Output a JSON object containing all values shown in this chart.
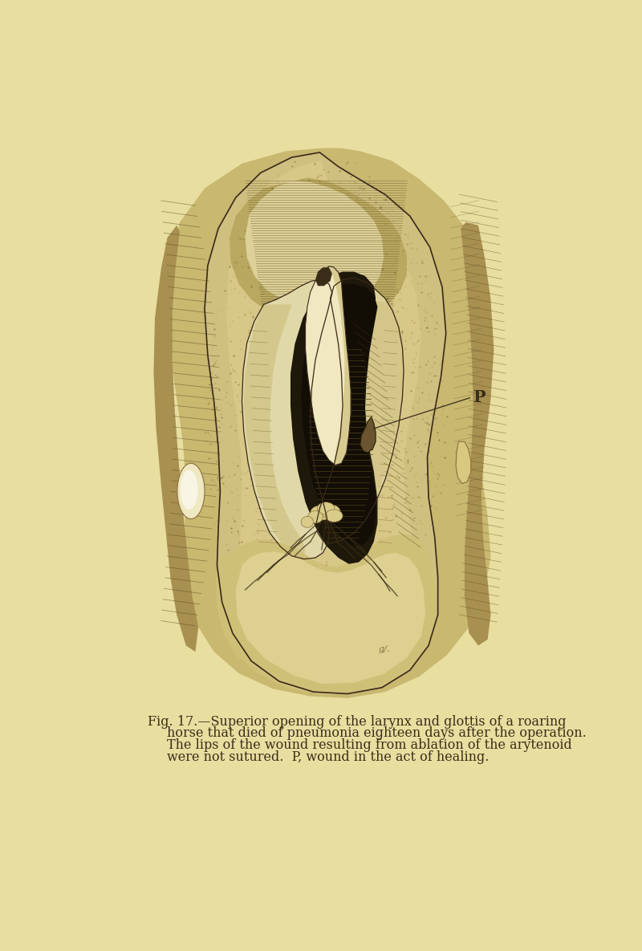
{
  "fig_width": 8.0,
  "fig_height": 11.85,
  "dpi": 100,
  "bg_color": "#e8dea0",
  "caption_line1": "Fig. 17.—Superior opening of the larynx and glottis of a roaring",
  "caption_line2": "horse that died of pneumonia eighteen days after the operation.",
  "caption_line3": "The lips of the wound resulting from ablation of the arytenoid",
  "caption_line4": "were not sutured.  P, wound in the act of healing.",
  "label_P": "P",
  "ink_color": "#3a2e18",
  "flesh_light": "#d4c88a",
  "flesh_mid": "#b8a868",
  "flesh_dark": "#8a7848",
  "dark_cavity": "#1e180a",
  "mid_cavity": "#3a3018",
  "caption_fontsize": 11.5,
  "label_fontsize": 15
}
